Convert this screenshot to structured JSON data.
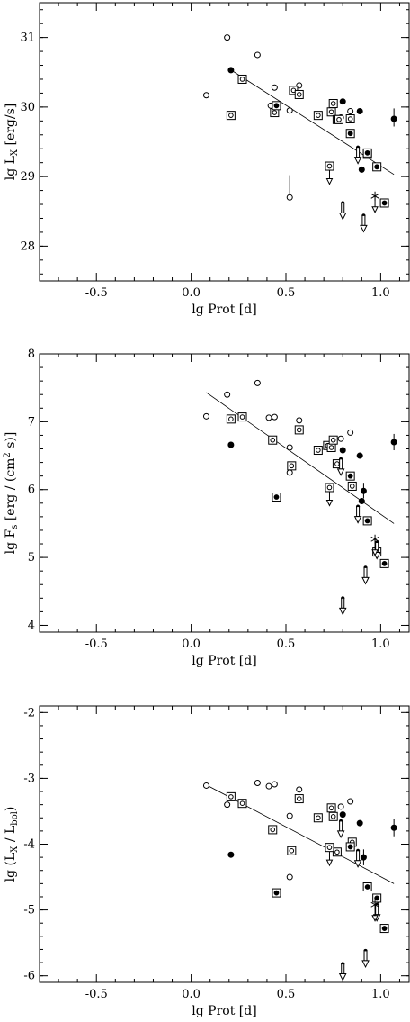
{
  "chart_data": [
    {
      "type": "scatter",
      "id": "lx",
      "xlabel": "lg Prot [d]",
      "ylabel_main": "lg L",
      "ylabel_sub": "X",
      "ylabel_tail": " [erg/s]",
      "xlim": [
        -0.8,
        1.15
      ],
      "ylim": [
        27.5,
        31.5
      ],
      "xticks": [
        "-0.5",
        "0.0",
        "0.5",
        "1.0"
      ],
      "xtick_values": [
        -0.5,
        0.0,
        0.5,
        1.0
      ],
      "yticks": [
        "28",
        "29",
        "30",
        "31"
      ],
      "ytick_values": [
        28,
        29,
        30,
        31
      ],
      "fit_line": [
        [
          0.2,
          30.55
        ],
        [
          1.07,
          29.03
        ]
      ],
      "series": [
        {
          "marker": "open-circle",
          "points": [
            [
              0.08,
              30.17
            ],
            [
              0.19,
              31.0
            ],
            [
              0.35,
              30.75
            ],
            [
              0.42,
              30.02
            ],
            [
              0.44,
              30.28
            ],
            [
              0.52,
              29.95
            ],
            [
              0.57,
              30.31
            ],
            [
              0.79,
              29.85
            ],
            [
              0.84,
              29.94
            ],
            [
              0.52,
              28.7
            ]
          ]
        },
        {
          "marker": "filled-circle",
          "points": [
            [
              0.21,
              30.53
            ],
            [
              0.8,
              30.08
            ],
            [
              0.89,
              29.94
            ],
            [
              0.9,
              29.1
            ],
            [
              1.07,
              29.83
            ]
          ]
        },
        {
          "marker": "boxed-circle",
          "points": [
            [
              0.21,
              29.88
            ],
            [
              0.27,
              30.4
            ],
            [
              0.44,
              29.92
            ],
            [
              0.54,
              30.24
            ],
            [
              0.57,
              30.18
            ],
            [
              0.67,
              29.88
            ],
            [
              0.74,
              29.93
            ],
            [
              0.75,
              30.05
            ],
            [
              0.77,
              29.82
            ],
            [
              0.78,
              29.82
            ],
            [
              0.84,
              29.83
            ],
            [
              0.93,
              29.32
            ]
          ]
        },
        {
          "marker": "boxed-filled",
          "points": [
            [
              0.45,
              30.02
            ],
            [
              0.84,
              29.62
            ],
            [
              0.93,
              29.34
            ],
            [
              0.98,
              29.14
            ],
            [
              1.02,
              28.62
            ]
          ]
        },
        {
          "marker": "boxed-circle-limit",
          "points": [
            [
              0.73,
              29.15
            ]
          ]
        },
        {
          "marker": "upper-limit",
          "points": [
            [
              0.8,
              28.62
            ],
            [
              0.88,
              29.42
            ],
            [
              0.91,
              28.44
            ]
          ]
        },
        {
          "marker": "asterisk",
          "points": [
            [
              0.97,
              28.72
            ]
          ]
        }
      ],
      "error_bars": [
        [
          0.52,
          28.7,
          29.02
        ],
        [
          1.07,
          29.72,
          29.98
        ]
      ]
    },
    {
      "type": "scatter",
      "id": "fs",
      "xlabel": "lg Prot [d]",
      "ylabel_main": "lg F",
      "ylabel_sub": "s",
      "ylabel_tail": " [erg / (cm",
      "ylabel_sup": "2",
      "ylabel_end": " s)]",
      "xlim": [
        -0.8,
        1.15
      ],
      "ylim": [
        3.9,
        8.0
      ],
      "xticks": [
        "-0.5",
        "0.0",
        "0.5",
        "1.0"
      ],
      "xtick_values": [
        -0.5,
        0.0,
        0.5,
        1.0
      ],
      "yticks": [
        "4",
        "5",
        "6",
        "7",
        "8"
      ],
      "ytick_values": [
        4,
        5,
        6,
        7,
        8
      ],
      "fit_line": [
        [
          0.08,
          7.43
        ],
        [
          1.07,
          5.5
        ]
      ],
      "series": [
        {
          "marker": "open-circle",
          "points": [
            [
              0.08,
              7.08
            ],
            [
              0.19,
              7.4
            ],
            [
              0.35,
              7.57
            ],
            [
              0.41,
              7.06
            ],
            [
              0.44,
              7.07
            ],
            [
              0.52,
              6.62
            ],
            [
              0.52,
              6.25
            ],
            [
              0.57,
              7.02
            ],
            [
              0.79,
              6.75
            ],
            [
              0.84,
              6.84
            ]
          ]
        },
        {
          "marker": "filled-circle",
          "points": [
            [
              0.21,
              6.66
            ],
            [
              0.8,
              6.58
            ],
            [
              0.89,
              6.5
            ],
            [
              0.91,
              5.98
            ],
            [
              0.9,
              5.83
            ],
            [
              1.07,
              6.7
            ]
          ]
        },
        {
          "marker": "boxed-circle",
          "points": [
            [
              0.21,
              7.04
            ],
            [
              0.27,
              7.07
            ],
            [
              0.43,
              6.73
            ],
            [
              0.53,
              6.35
            ],
            [
              0.57,
              6.88
            ],
            [
              0.67,
              6.58
            ],
            [
              0.72,
              6.65
            ],
            [
              0.74,
              6.62
            ],
            [
              0.75,
              6.73
            ],
            [
              0.77,
              6.38
            ],
            [
              0.85,
              6.05
            ]
          ]
        },
        {
          "marker": "boxed-filled",
          "points": [
            [
              0.45,
              5.89
            ],
            [
              0.84,
              6.2
            ],
            [
              0.93,
              5.54
            ],
            [
              0.98,
              5.08
            ],
            [
              1.02,
              4.91
            ]
          ]
        },
        {
          "marker": "boxed-circle-limit",
          "points": [
            [
              0.73,
              6.03
            ]
          ]
        },
        {
          "marker": "upper-limit",
          "points": [
            [
              0.79,
              6.45
            ],
            [
              0.8,
              4.4
            ],
            [
              0.88,
              5.75
            ],
            [
              0.92,
              4.85
            ],
            [
              0.98,
              5.22
            ]
          ]
        },
        {
          "marker": "asterisk",
          "points": [
            [
              0.97,
              5.27
            ]
          ]
        }
      ],
      "error_bars": [
        [
          1.07,
          6.58,
          6.82
        ],
        [
          0.91,
          5.87,
          6.1
        ]
      ]
    },
    {
      "type": "scatter",
      "id": "ratio",
      "xlabel": "lg Prot [d]",
      "ylabel_main": "lg (L",
      "ylabel_sub": "X",
      "ylabel_tail": " / L",
      "ylabel_sub2": "bol",
      "ylabel_end": ")",
      "xlim": [
        -0.8,
        1.15
      ],
      "ylim": [
        -6.1,
        -1.9
      ],
      "xticks": [
        "-0.5",
        "0.0",
        "0.5",
        "1.0"
      ],
      "xtick_values": [
        -0.5,
        0.0,
        0.5,
        1.0
      ],
      "yticks": [
        "-6",
        "-5",
        "-4",
        "-3",
        "-2"
      ],
      "ytick_values": [
        -6,
        -5,
        -4,
        -3,
        -2
      ],
      "fit_line": [
        [
          0.08,
          -3.1
        ],
        [
          1.07,
          -4.6
        ]
      ],
      "series": [
        {
          "marker": "open-circle",
          "points": [
            [
              0.08,
              -3.11
            ],
            [
              0.19,
              -3.4
            ],
            [
              0.35,
              -3.07
            ],
            [
              0.41,
              -3.12
            ],
            [
              0.44,
              -3.09
            ],
            [
              0.52,
              -3.57
            ],
            [
              0.52,
              -4.5
            ],
            [
              0.57,
              -3.17
            ],
            [
              0.79,
              -3.43
            ],
            [
              0.84,
              -3.35
            ]
          ]
        },
        {
          "marker": "filled-circle",
          "points": [
            [
              0.21,
              -4.16
            ],
            [
              0.8,
              -3.55
            ],
            [
              0.89,
              -3.68
            ],
            [
              0.91,
              -4.2
            ],
            [
              1.07,
              -3.75
            ]
          ]
        },
        {
          "marker": "boxed-circle",
          "points": [
            [
              0.21,
              -3.28
            ],
            [
              0.27,
              -3.38
            ],
            [
              0.43,
              -3.78
            ],
            [
              0.53,
              -4.1
            ],
            [
              0.57,
              -3.31
            ],
            [
              0.67,
              -3.6
            ],
            [
              0.74,
              -3.45
            ],
            [
              0.75,
              -3.58
            ],
            [
              0.77,
              -4.12
            ],
            [
              0.85,
              -3.97
            ]
          ]
        },
        {
          "marker": "boxed-filled",
          "points": [
            [
              0.45,
              -4.74
            ],
            [
              0.84,
              -4.04
            ],
            [
              0.93,
              -4.65
            ],
            [
              0.98,
              -4.82
            ],
            [
              1.02,
              -5.28
            ]
          ]
        },
        {
          "marker": "boxed-circle-limit",
          "points": [
            [
              0.73,
              -4.05
            ]
          ]
        },
        {
          "marker": "upper-limit",
          "points": [
            [
              0.79,
              -3.65
            ],
            [
              0.8,
              -5.82
            ],
            [
              0.88,
              -4.1
            ],
            [
              0.92,
              -5.62
            ],
            [
              0.98,
              -4.92
            ]
          ]
        },
        {
          "marker": "asterisk",
          "points": [
            [
              0.97,
              -4.92
            ]
          ]
        }
      ],
      "error_bars": [
        [
          1.07,
          -3.62,
          -3.88
        ],
        [
          0.91,
          -4.08,
          -4.32
        ]
      ]
    }
  ]
}
